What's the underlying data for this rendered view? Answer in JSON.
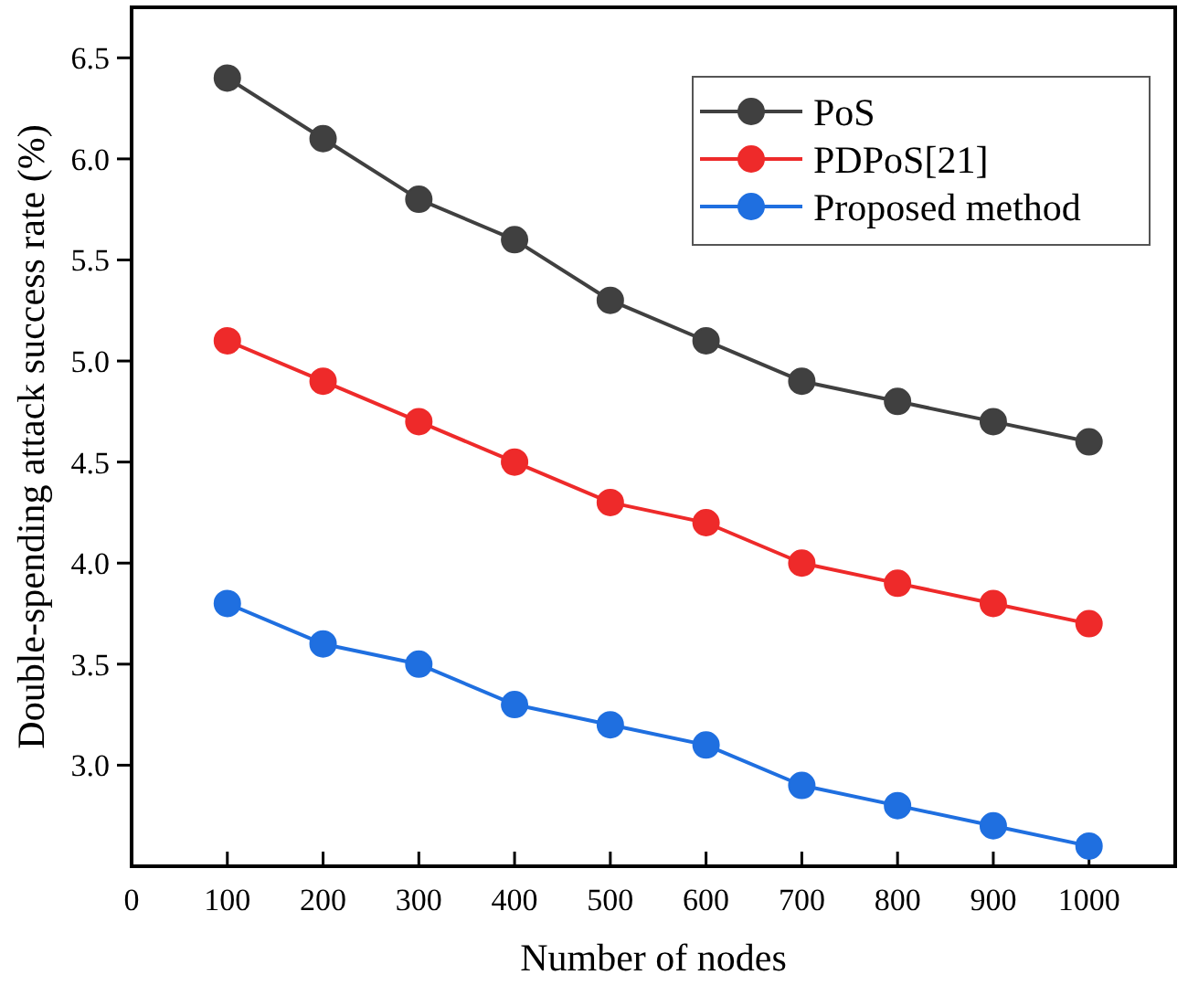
{
  "chart_data": {
    "type": "line",
    "xlabel": "Number of nodes",
    "ylabel": "Double-spending attack success rate (%)",
    "x": [
      100,
      200,
      300,
      400,
      500,
      600,
      700,
      800,
      900,
      1000
    ],
    "series": [
      {
        "name": "PoS",
        "color": "#404040",
        "values": [
          6.4,
          6.1,
          5.8,
          5.6,
          5.3,
          5.1,
          4.9,
          4.8,
          4.7,
          4.6
        ]
      },
      {
        "name": "PDPoS[21]",
        "color": "#ee2a2a",
        "values": [
          5.1,
          4.9,
          4.7,
          4.5,
          4.3,
          4.2,
          4.0,
          3.9,
          3.8,
          3.7
        ]
      },
      {
        "name": "Proposed method",
        "color": "#1f6fe0",
        "values": [
          3.8,
          3.6,
          3.5,
          3.3,
          3.2,
          3.1,
          2.9,
          2.8,
          2.7,
          2.6
        ]
      }
    ],
    "xlim": [
      0,
      1090
    ],
    "xticks": [
      0,
      100,
      200,
      300,
      400,
      500,
      600,
      700,
      800,
      900,
      1000
    ],
    "ylim": [
      2.5,
      6.75
    ],
    "yticks": [
      {
        "value": 3,
        "label": "3.0"
      },
      3.5,
      {
        "value": 4,
        "label": "4.0"
      },
      4.5,
      {
        "value": 5,
        "label": "5.0"
      },
      5.5,
      {
        "value": 6,
        "label": "6.0"
      },
      6.5
    ],
    "marker": "circle",
    "line_style": "solid",
    "legend": "top right",
    "grid": false
  }
}
